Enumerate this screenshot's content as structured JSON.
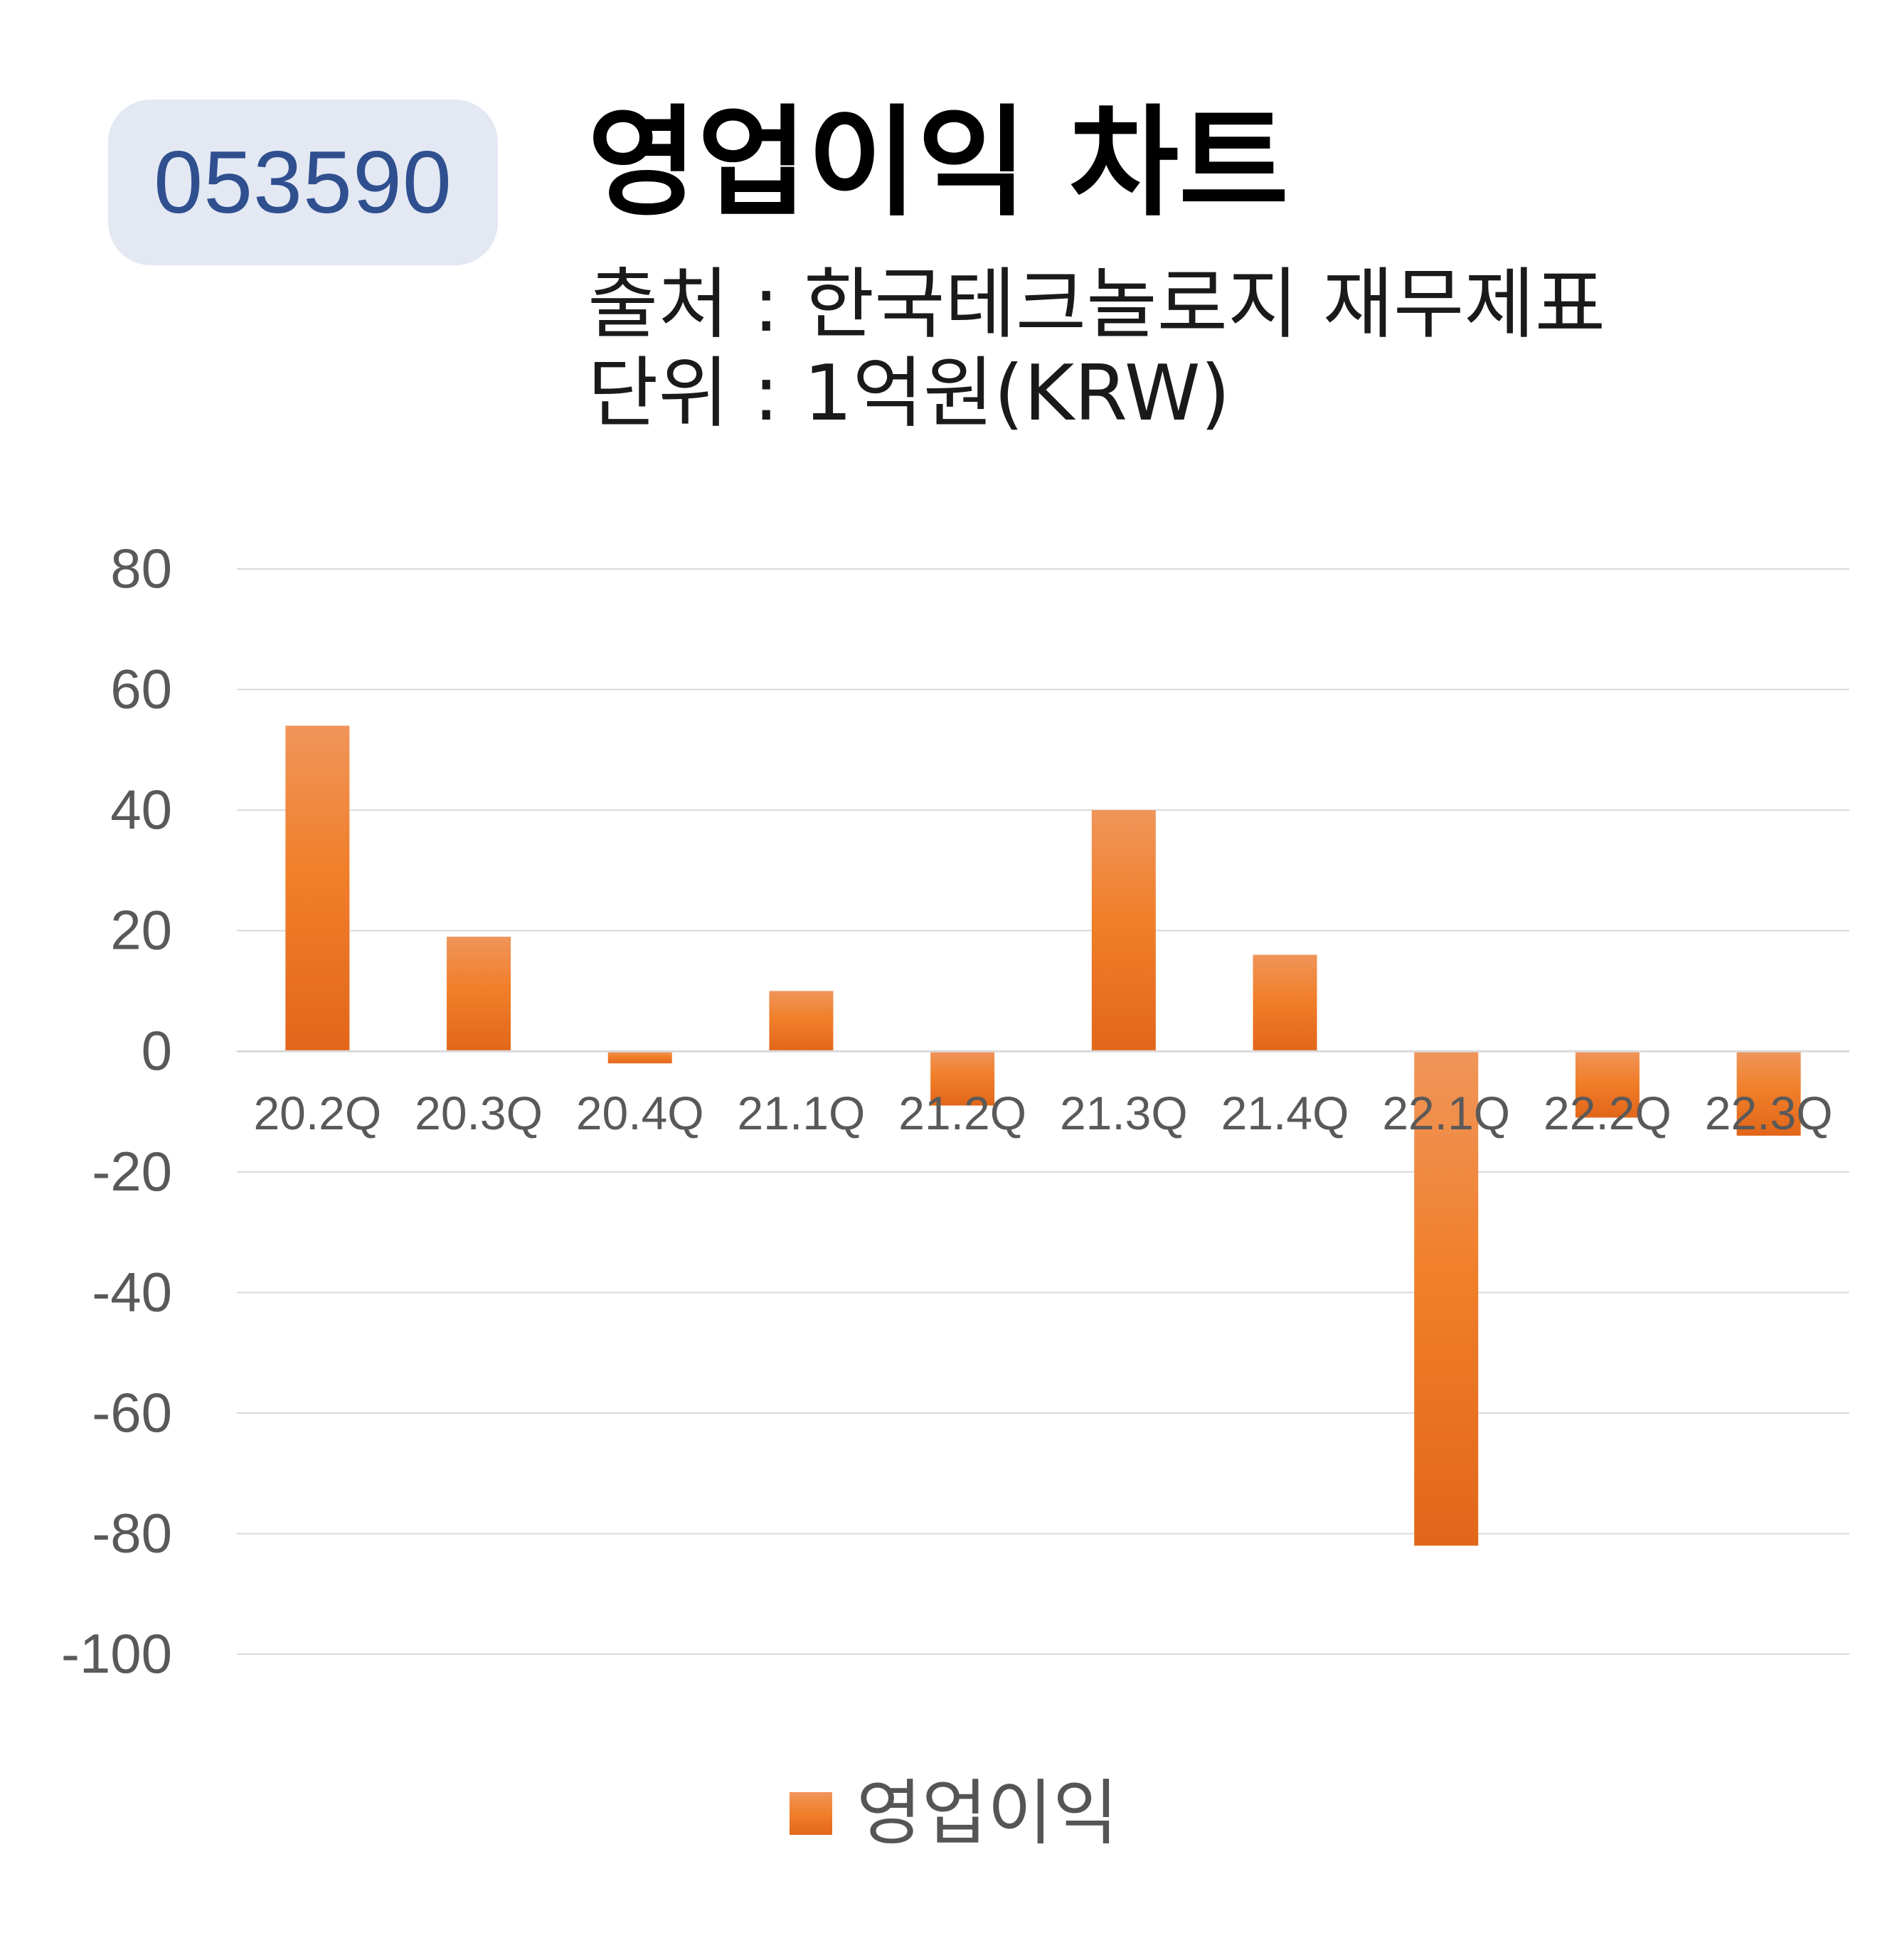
{
  "badge": {
    "code": "053590"
  },
  "header": {
    "title": "영업이익 차트",
    "source": "출처 : 한국테크놀로지 재무제표",
    "unit": "단위 : 1억원(KRW)"
  },
  "chart_data": {
    "type": "bar",
    "categories": [
      "20.2Q",
      "20.3Q",
      "20.4Q",
      "21.1Q",
      "21.2Q",
      "21.3Q",
      "21.4Q",
      "22.1Q",
      "22.2Q",
      "22.3Q"
    ],
    "series": [
      {
        "name": "영업이익",
        "values": [
          54,
          19,
          -2,
          10,
          -9,
          40,
          16,
          -82,
          -11,
          -14
        ],
        "color": "#f07f2a"
      }
    ],
    "ylim": [
      -100,
      80
    ],
    "yticks": [
      80,
      60,
      40,
      20,
      0,
      -20,
      -40,
      -60,
      -80,
      -100
    ],
    "ytick_labels": [
      "80",
      "60",
      "40",
      "20",
      "0",
      "-20",
      "-40",
      "-60",
      "-80",
      "-100"
    ],
    "grid": true,
    "legend": "bottom",
    "title": "",
    "xlabel": "",
    "ylabel": ""
  }
}
